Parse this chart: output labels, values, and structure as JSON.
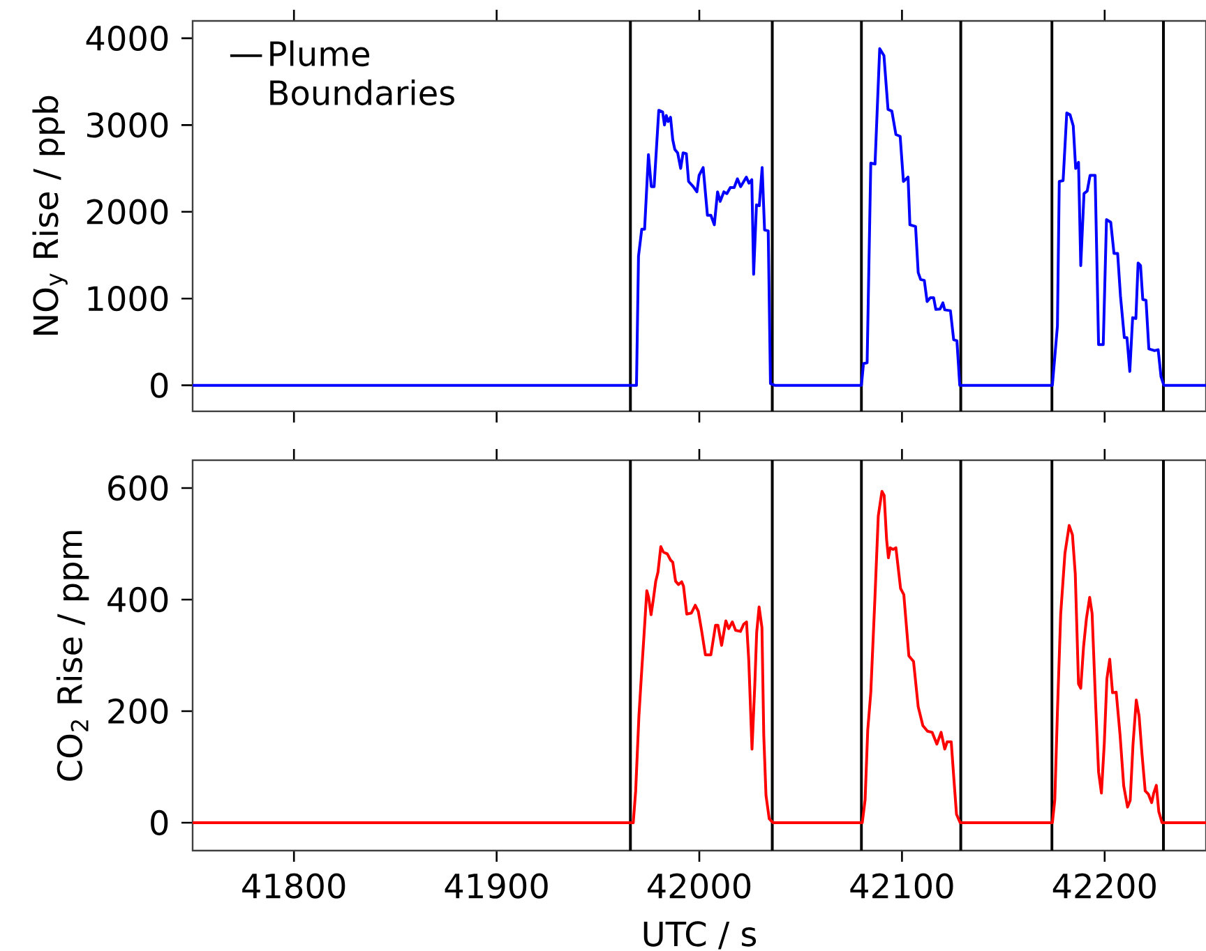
{
  "chart_data": [
    {
      "type": "line",
      "ylabel": "NO$_{y}$ Rise / ppb",
      "xlim": [
        41750,
        42250
      ],
      "ylim": [
        -300,
        4200
      ],
      "xticks": [
        41800,
        41900,
        42000,
        42100,
        42200
      ],
      "yticks": [
        0,
        1000,
        2000,
        3000,
        4000
      ],
      "tick_labels": "y",
      "legend": "top left",
      "series": [
        {
          "color": "#0000ff",
          "x": [
            41750,
            41969,
            41970,
            41971.6,
            41973,
            41974.9,
            41976.3,
            41977.7,
            41980,
            41981.9,
            41982.8,
            41983.7,
            41984.6,
            41985.8,
            41986.9,
            41987.9,
            41989.3,
            41990.8,
            41992,
            41993.6,
            41994.7,
            41997,
            41998.8,
            41999.9,
            42001.9,
            42004,
            42005.7,
            42007.4,
            42009,
            42010.3,
            42012.1,
            42013.6,
            42015.3,
            42017.2,
            42018.8,
            42020.4,
            42023.2,
            42024.5,
            42025.9,
            42026.8,
            42028.2,
            42029.6,
            42031,
            42032.2,
            42034,
            42035.1,
            42037.2,
            42080,
            42081,
            42082.8,
            42084.6,
            42086.7,
            42089,
            42091.1,
            42093.1,
            42095,
            42097,
            42099.1,
            42100.7,
            42103,
            42103.9,
            42106.7,
            42108,
            42109.2,
            42111,
            42112.4,
            42114,
            42115.6,
            42116.7,
            42118.8,
            42120.2,
            42121.1,
            42123.9,
            42125.5,
            42127.1,
            42128.5,
            42174.2,
            42176.7,
            42177.6,
            42179.5,
            42181.3,
            42182.9,
            42184.5,
            42185.7,
            42187.1,
            42188.2,
            42189.8,
            42191.4,
            42192.8,
            42195.3,
            42197,
            42199.3,
            42200.9,
            42203,
            42204.6,
            42206.4,
            42207.8,
            42209.7,
            42211,
            42212.4,
            42213.8,
            42215.4,
            42216.5,
            42217.7,
            42218.8,
            42220.4,
            42221.8,
            42224.6,
            42226.4,
            42227.8,
            42229.2,
            42250
          ],
          "values": [
            0,
            0,
            1490,
            1800,
            1800,
            2660,
            2290,
            2290,
            3170,
            3150,
            3000,
            3110,
            3040,
            3090,
            2830,
            2720,
            2680,
            2500,
            2680,
            2670,
            2350,
            2290,
            2230,
            2420,
            2510,
            1960,
            1960,
            1850,
            2230,
            2120,
            2230,
            2210,
            2280,
            2280,
            2380,
            2290,
            2400,
            2330,
            2370,
            1280,
            2080,
            2070,
            2510,
            1790,
            1780,
            20,
            0,
            0,
            250,
            260,
            2560,
            2550,
            3880,
            3800,
            3180,
            3160,
            2890,
            2870,
            2350,
            2400,
            1850,
            1830,
            1300,
            1220,
            1210,
            965,
            1010,
            1010,
            875,
            880,
            950,
            870,
            860,
            525,
            515,
            0,
            0,
            685,
            2350,
            2360,
            3140,
            3120,
            2990,
            2500,
            2570,
            1380,
            2210,
            2240,
            2420,
            2420,
            470,
            470,
            1910,
            1880,
            1520,
            1520,
            1030,
            550,
            550,
            160,
            780,
            770,
            1410,
            1380,
            990,
            980,
            420,
            400,
            410,
            100,
            0,
            0
          ]
        }
      ],
      "ref_lines": [
        {
          "axis": "x",
          "value": 41966,
          "color": "#000000",
          "label": "Plume Boundaries"
        },
        {
          "axis": "x",
          "value": 42036,
          "color": "#000000"
        },
        {
          "axis": "x",
          "value": 42080,
          "color": "#000000"
        },
        {
          "axis": "x",
          "value": 42129,
          "color": "#000000"
        },
        {
          "axis": "x",
          "value": 42174,
          "color": "#000000"
        },
        {
          "axis": "x",
          "value": 42229,
          "color": "#000000"
        }
      ]
    },
    {
      "type": "line",
      "xlabel": "UTC / s",
      "ylabel": "CO$_{2}$ Rise / ppm",
      "xlim": [
        41750,
        42250
      ],
      "ylim": [
        -50,
        650
      ],
      "xticks": [
        41800,
        41900,
        42000,
        42100,
        42200
      ],
      "yticks": [
        0,
        200,
        400,
        600
      ],
      "series": [
        {
          "color": "#ff0000",
          "x": [
            41750,
            41967.4,
            41968.6,
            41970.2,
            41971.6,
            41972.8,
            41974.1,
            41975,
            41976.2,
            41977.3,
            41978.5,
            41979.6,
            41981,
            41982.3,
            41984.2,
            41985.8,
            41986.9,
            41988.3,
            41989.7,
            41991.3,
            41992.2,
            41993.8,
            41996.1,
            41998,
            41999.5,
            42001.1,
            42003,
            42005.7,
            42008,
            42009.2,
            42011,
            42013.1,
            42014.5,
            42016.3,
            42017.9,
            42020.3,
            42021.9,
            42023.3,
            42024.4,
            42026,
            42027.4,
            42028.3,
            42029.5,
            42030.9,
            42031.8,
            42032.9,
            42034.5,
            42036.4,
            42080.4,
            42081.8,
            42083.1,
            42084.6,
            42086.6,
            42088.3,
            42090.1,
            42091.2,
            42092.4,
            42093.3,
            42094.2,
            42095.6,
            42097,
            42099.3,
            42100.9,
            42103.4,
            42105.7,
            42108,
            42110.3,
            42112.6,
            42114.9,
            42117.2,
            42119.3,
            42121.1,
            42122.3,
            42124.3,
            42125.7,
            42126.9,
            42128.7,
            42174.2,
            42175.4,
            42176.7,
            42178.3,
            42180.4,
            42182.5,
            42184.1,
            42185.5,
            42187.1,
            42188.2,
            42189.6,
            42191,
            42192.6,
            42193.8,
            42195.6,
            42197,
            42198.4,
            42199.8,
            42201.1,
            42202.5,
            42203.9,
            42205.7,
            42207.6,
            42209.4,
            42211.3,
            42212.6,
            42214,
            42215.6,
            42217,
            42218.4,
            42220,
            42221.6,
            42223.2,
            42224.2,
            42225.5,
            42226.7,
            42228.3,
            42250
          ],
          "values": [
            0,
            0,
            57,
            191,
            274,
            341,
            416,
            404,
            373,
            400,
            433,
            449,
            495,
            485,
            482,
            471,
            467,
            433,
            427,
            432,
            424,
            374,
            376,
            390,
            379,
            345,
            301,
            301,
            354,
            354,
            318,
            362,
            348,
            360,
            345,
            343,
            356,
            360,
            291,
            132,
            249,
            341,
            387,
            350,
            157,
            49,
            7,
            0,
            0,
            41,
            166,
            233,
            399,
            550,
            594,
            587,
            508,
            475,
            493,
            490,
            493,
            420,
            409,
            299,
            289,
            208,
            174,
            164,
            162,
            141,
            162,
            132,
            145,
            145,
            74,
            15,
            0,
            0,
            41,
            199,
            374,
            483,
            533,
            516,
            446,
            249,
            241,
            316,
            366,
            404,
            375,
            208,
            91,
            53,
            141,
            258,
            293,
            233,
            234,
            157,
            66,
            28,
            40,
            141,
            220,
            191,
            124,
            57,
            51,
            36,
            53,
            67,
            20,
            0,
            0
          ]
        }
      ],
      "ref_lines": [
        {
          "axis": "x",
          "value": 41966,
          "color": "#000000"
        },
        {
          "axis": "x",
          "value": 42036,
          "color": "#000000"
        },
        {
          "axis": "x",
          "value": 42080,
          "color": "#000000"
        },
        {
          "axis": "x",
          "value": 42129,
          "color": "#000000"
        },
        {
          "axis": "x",
          "value": 42174,
          "color": "#000000"
        },
        {
          "axis": "x",
          "value": 42229,
          "color": "#000000"
        }
      ]
    }
  ]
}
